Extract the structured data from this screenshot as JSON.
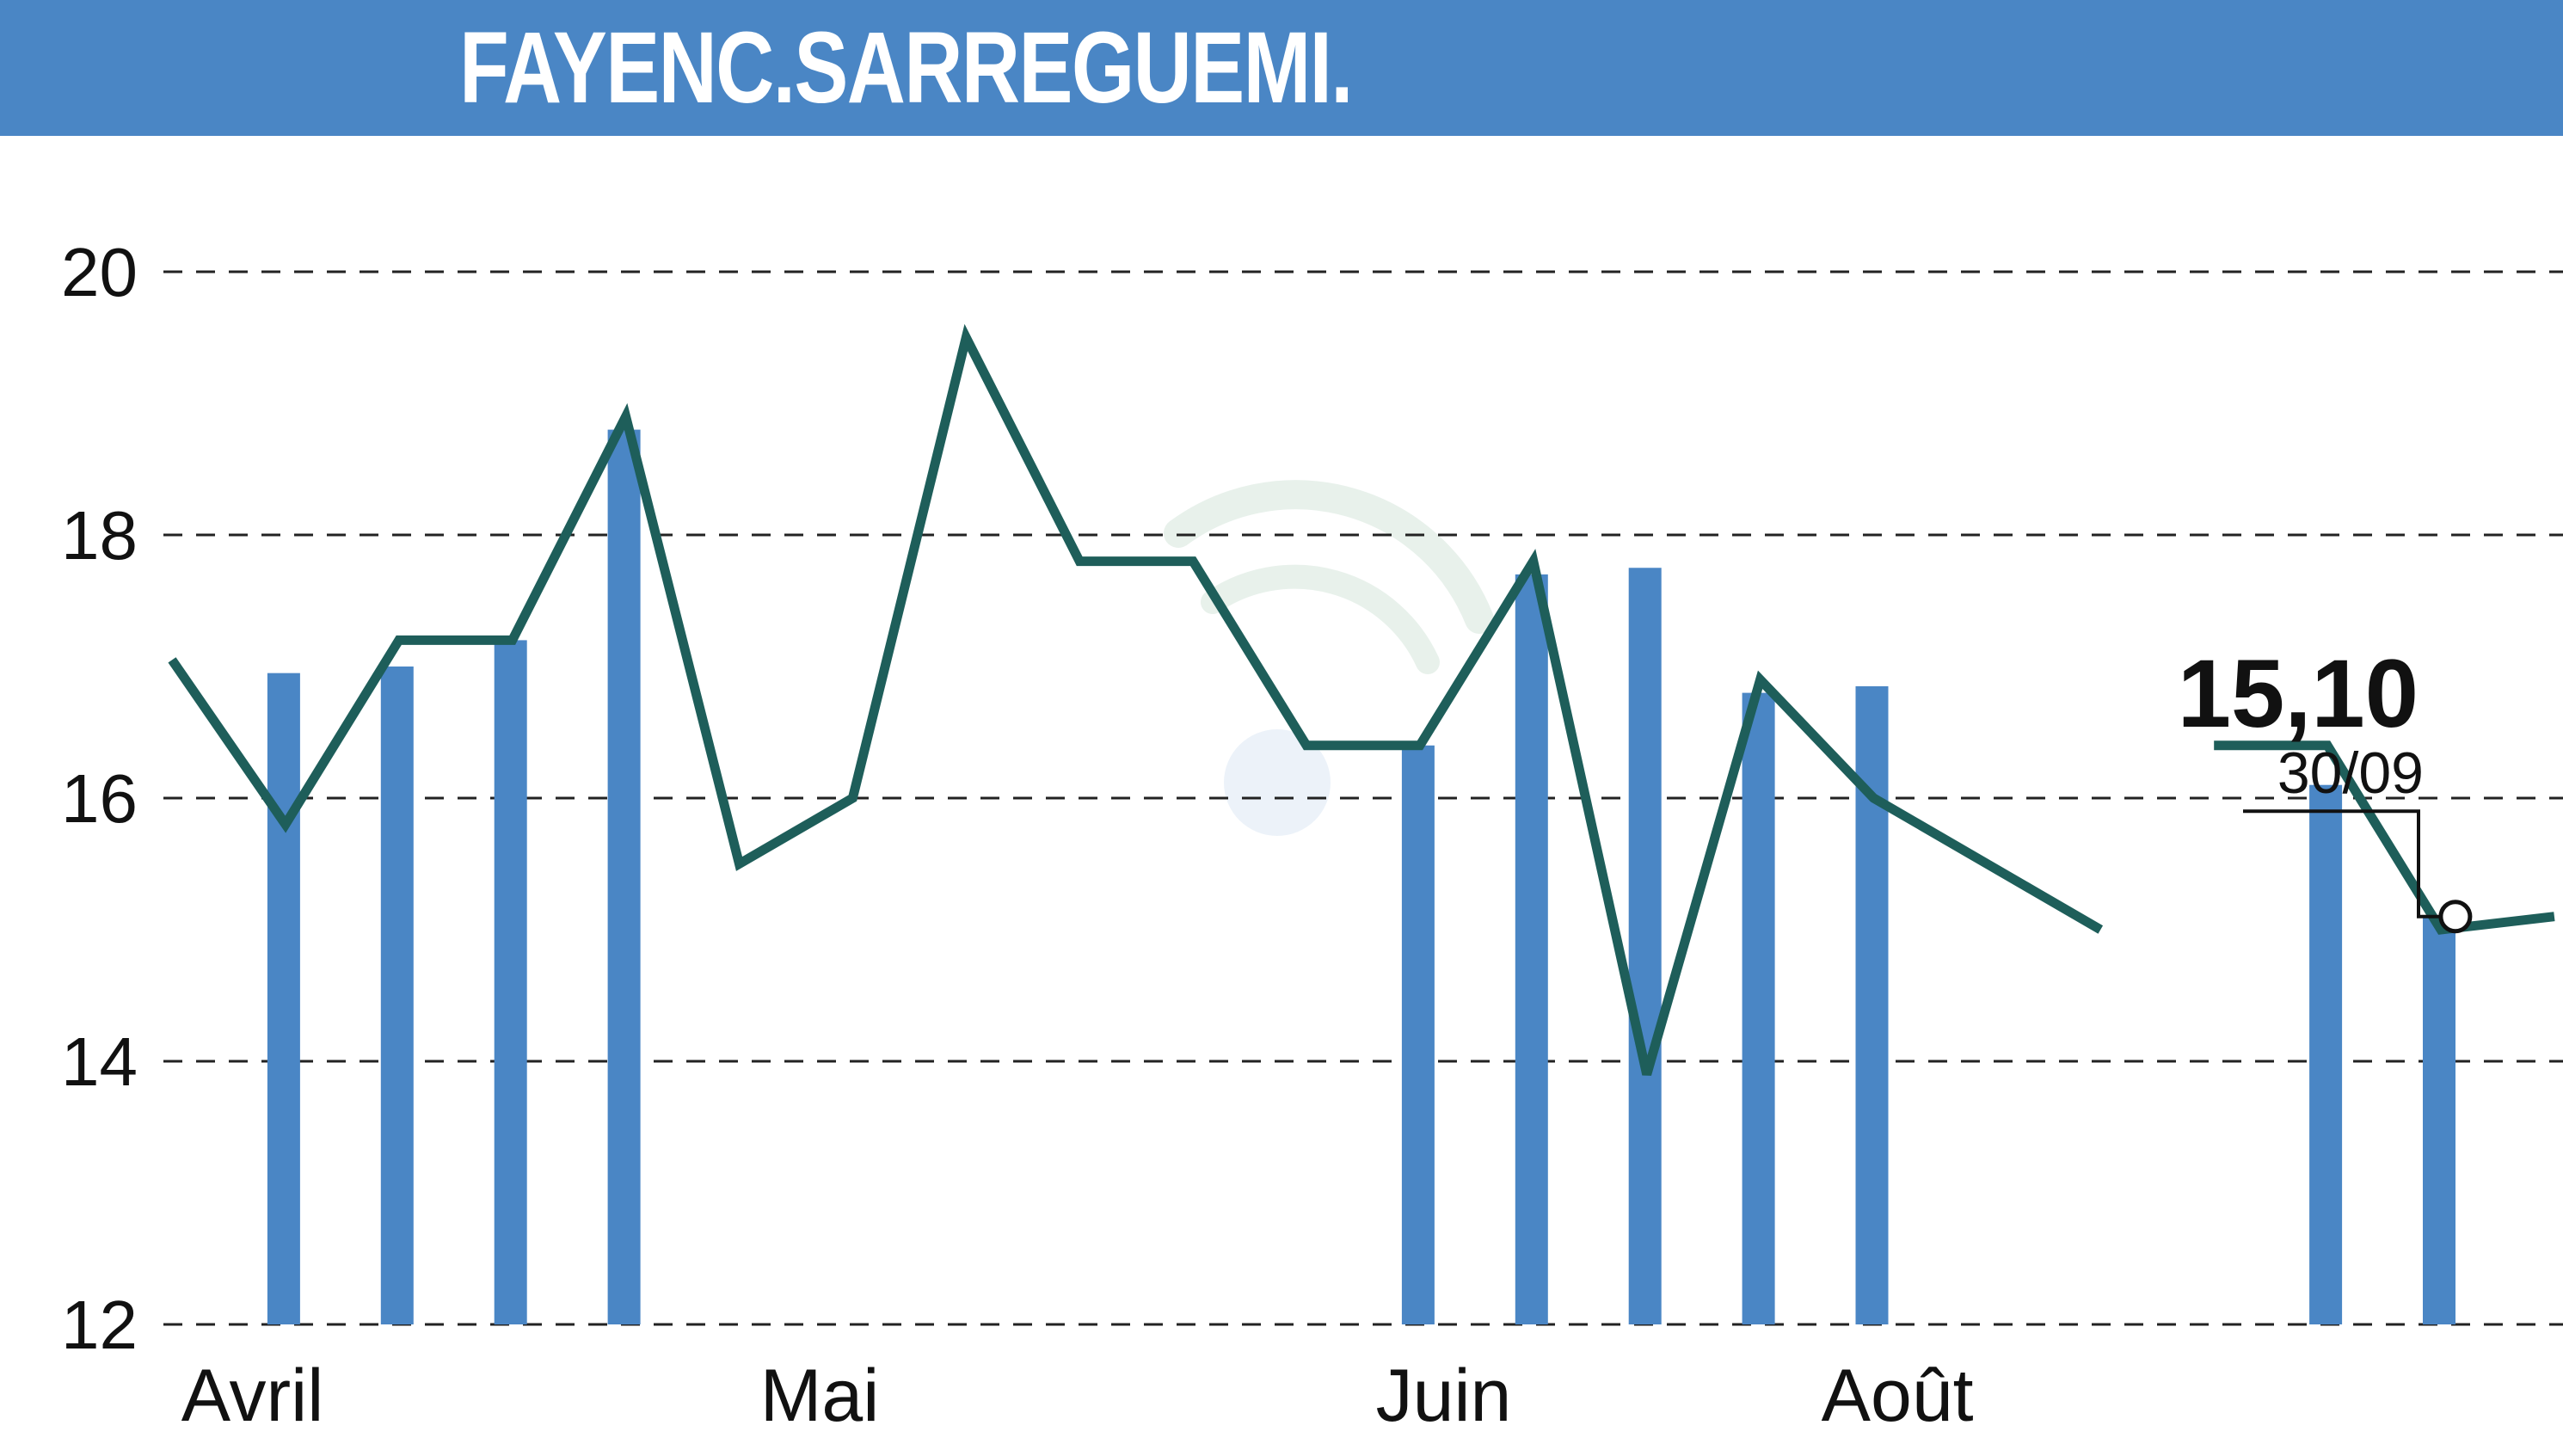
{
  "header": {
    "title": "FAYENC.SARREGUEMI."
  },
  "colors": {
    "banner": "#4a86c5",
    "line": "#1e5e5a",
    "bars": "#4a86c5",
    "grid": "#222222"
  },
  "chart_data": {
    "type": "line",
    "title": "FAYENC.SARREGUEMI.",
    "xlabel": "",
    "ylabel": "",
    "ylim": [
      12,
      20
    ],
    "yticks": [
      "12",
      "14",
      "16",
      "18",
      "20"
    ],
    "months": [
      {
        "label": "Avril",
        "index": 0.3
      },
      {
        "label": "Mai",
        "index": 5.3
      },
      {
        "label": "Juin",
        "index": 10.8
      },
      {
        "label": "Août",
        "index": 14.8
      }
    ],
    "grid": true,
    "series": [
      {
        "values": [
          17.05,
          15.8,
          17.2,
          17.2,
          18.9,
          15.5,
          16.0,
          19.5,
          17.8,
          17.8,
          16.4,
          16.4,
          17.8,
          13.9,
          16.9,
          16.0,
          15.5,
          15.0,
          16.4,
          16.4,
          15.0,
          15.1
        ],
        "gaps": [
          17
        ]
      }
    ],
    "volume_bars": [
      {
        "index": 1,
        "top": 16.95
      },
      {
        "index": 2,
        "top": 17.0
      },
      {
        "index": 3,
        "top": 17.2
      },
      {
        "index": 4,
        "top": 18.8
      },
      {
        "index": 11,
        "top": 16.4
      },
      {
        "index": 12,
        "top": 17.7
      },
      {
        "index": 13,
        "top": 17.75
      },
      {
        "index": 14,
        "top": 16.8
      },
      {
        "index": 15,
        "top": 16.85
      },
      {
        "index": 19,
        "top": 16.1
      },
      {
        "index": 20,
        "top": 15.1
      }
    ],
    "last_value": "15,10",
    "last_date": "30/09"
  }
}
